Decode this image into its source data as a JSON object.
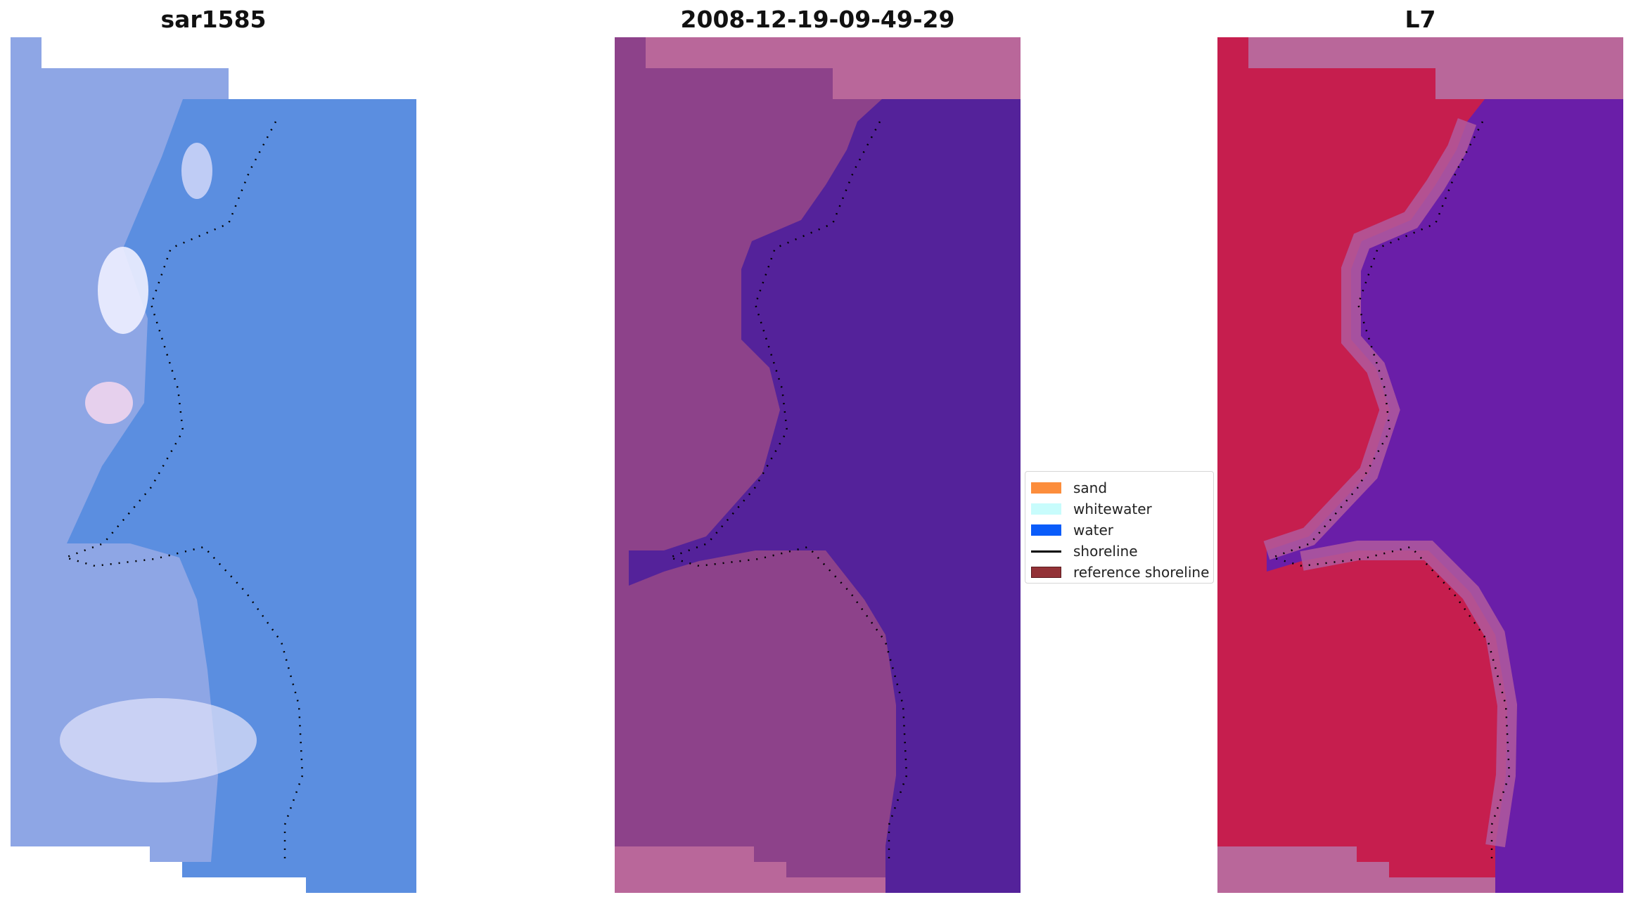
{
  "panels": [
    {
      "title": "sar1585"
    },
    {
      "title": "2008-12-19-09-49-29"
    },
    {
      "title": "L7"
    }
  ],
  "legend": {
    "items": [
      {
        "label": "sand",
        "color": "#fc8d3c",
        "kind": "swatch"
      },
      {
        "label": "whitewater",
        "color": "#c8fcfc",
        "kind": "swatch"
      },
      {
        "label": "water",
        "color": "#0a5cfa",
        "kind": "swatch"
      },
      {
        "label": "shoreline",
        "color": "#000000",
        "kind": "line"
      },
      {
        "label": "reference shoreline",
        "color": "#933237",
        "kind": "swatch"
      }
    ]
  },
  "colors": {
    "rgb_water": "#5b8ee0",
    "rgb_land": "#93a8e6",
    "rgb_whitewater": "#eef0ff",
    "class_land": "#a85a9a",
    "class_water": "#54229a",
    "class_nodata": "#b9679a",
    "mndwi_land": "#c61e4e",
    "mndwi_water": "#6a1ea8",
    "mndwi_nodata": "#b9679a",
    "shoreline_dots": "#000000"
  }
}
